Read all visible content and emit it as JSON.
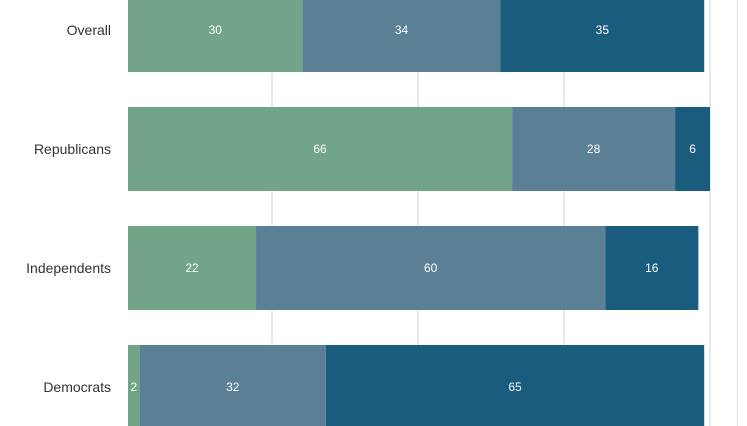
{
  "chart_data": {
    "type": "bar",
    "orientation": "horizontal",
    "stacked": true,
    "categories": [
      "Overall",
      "Republicans",
      "Independents",
      "Democrats"
    ],
    "series": [
      {
        "values": [
          30,
          66,
          22,
          2
        ],
        "color": "#72a48a"
      },
      {
        "values": [
          34,
          28,
          60,
          32
        ],
        "color": "#5b8096"
      },
      {
        "values": [
          35,
          6,
          16,
          65
        ],
        "color": "#195c7d"
      }
    ],
    "xlim": [
      0,
      100
    ],
    "grid": true,
    "data_labels": true
  }
}
